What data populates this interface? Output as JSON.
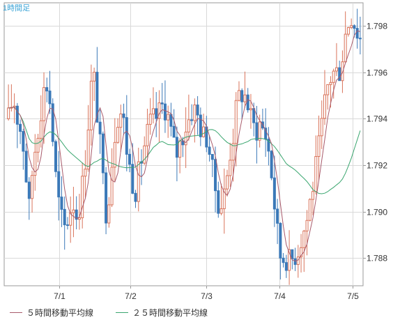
{
  "timeframe_label": "1時間足",
  "colors": {
    "up": "#d9735a",
    "down": "#3b79b8",
    "ma5": "#a85a6b",
    "ma25": "#3aa66f",
    "grid": "#d9d9d9",
    "axis": "#999999",
    "text": "#333333",
    "title": "#3aa3d6"
  },
  "chart_data": {
    "type": "candlestick",
    "x_tick_labels": [
      "7/1",
      "7/2",
      "7/3",
      "7/4",
      "7/5"
    ],
    "y_ticks": [
      1.788,
      1.79,
      1.792,
      1.794,
      1.796,
      1.798
    ],
    "ylim": [
      1.7868,
      1.799
    ],
    "grid": true,
    "legend_position": "bottom",
    "series": [
      {
        "name": "５時間移動平均線",
        "color": "#a85a6b"
      },
      {
        "name": "２５時間移動平均線",
        "color": "#3aa66f"
      }
    ]
  },
  "legend": {
    "ma5": "５時間移動平均線",
    "ma25": "２５時間移動平均線"
  }
}
